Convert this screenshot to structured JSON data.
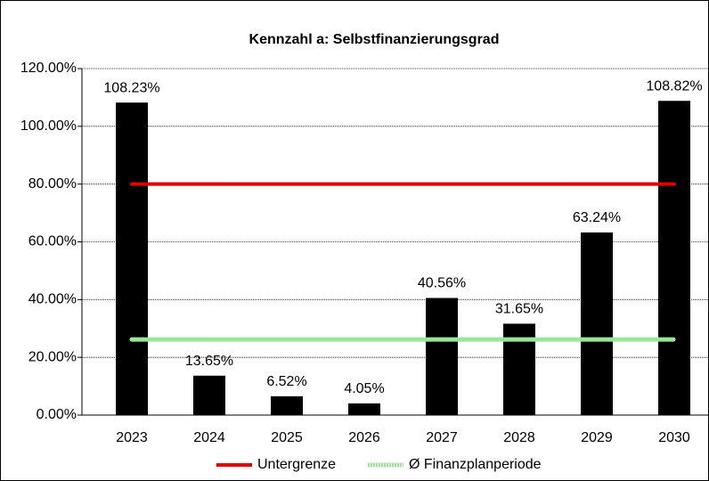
{
  "chart_data": {
    "type": "bar",
    "title": "Kennzahl a: Selbstfinanzierungsgrad",
    "categories": [
      "2023",
      "2024",
      "2025",
      "2026",
      "2027",
      "2028",
      "2029",
      "2030"
    ],
    "values": [
      108.23,
      13.65,
      6.52,
      4.05,
      40.56,
      31.65,
      63.24,
      108.82
    ],
    "value_labels": [
      "108.23%",
      "13.65%",
      "6.52%",
      "4.05%",
      "40.56%",
      "31.65%",
      "63.24%",
      "108.82%"
    ],
    "color": "#000000",
    "lines": [
      {
        "name": "Untergrenze",
        "color": "#e00000",
        "values": [
          80,
          80,
          80,
          80,
          80,
          80,
          80,
          80
        ]
      },
      {
        "name": "Ø Finanzplanperiode",
        "color": "#99e699",
        "values": [
          26.2,
          26.2,
          26.2,
          26.2,
          26.2,
          26.2,
          26.2,
          26.2
        ]
      }
    ],
    "ylim": [
      0,
      120
    ],
    "yticks": [
      {
        "value": 0,
        "label": "0.00%"
      },
      {
        "value": 20,
        "label": "20.00%"
      },
      {
        "value": 40,
        "label": "40.00%"
      },
      {
        "value": 60,
        "label": "60.00%"
      },
      {
        "value": 80,
        "label": "80.00%"
      },
      {
        "value": 100,
        "label": "100.00%"
      },
      {
        "value": 120,
        "label": "120.00%"
      }
    ],
    "grid": true,
    "legend": "bottom"
  }
}
